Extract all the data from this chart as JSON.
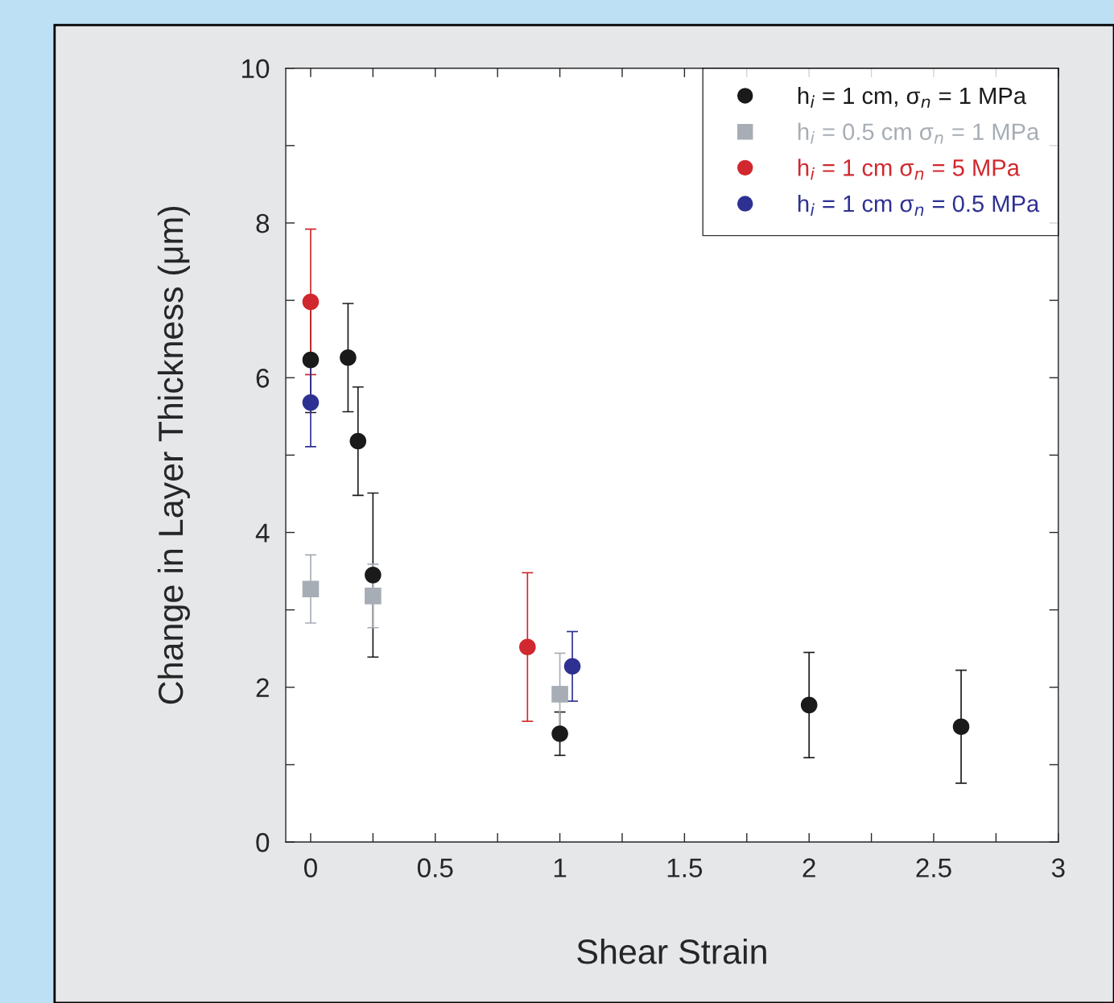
{
  "chart_data": {
    "type": "scatter",
    "xlabel": "Shear Strain",
    "ylabel": "Change in Layer Thickness (μm)",
    "xlim": [
      -0.1,
      3
    ],
    "ylim": [
      0,
      10
    ],
    "xticks": [
      0,
      {
        "value": 0.25,
        "label": null
      },
      0.5,
      {
        "value": 0.75,
        "label": null
      },
      1,
      {
        "value": 1.25,
        "label": null
      },
      1.5,
      {
        "value": 1.75,
        "label": null
      },
      2,
      {
        "value": 2.25,
        "label": null
      },
      2.5,
      {
        "value": 2.75,
        "label": null
      },
      3
    ],
    "yticks": [
      0,
      {
        "value": 1,
        "label": null
      },
      2,
      {
        "value": 3,
        "label": null
      },
      4,
      {
        "value": 5,
        "label": null
      },
      6,
      {
        "value": 7,
        "label": null
      },
      8,
      {
        "value": 9,
        "label": null
      },
      10
    ],
    "grid": false,
    "legend": "top right",
    "series": [
      {
        "name": "h$_{i}$ = 1 cm, σ$_{n}$ = 1 MPa",
        "color": "#1a1a1a",
        "marker": "circle",
        "x": [
          0,
          0.15,
          0.19,
          0.25,
          1.0,
          2.0,
          2.61
        ],
        "values": [
          6.23,
          6.26,
          5.18,
          3.45,
          1.4,
          1.77,
          1.49
        ],
        "errors": [
          0.68,
          0.7,
          0.7,
          1.06,
          0.28,
          0.68,
          0.73
        ]
      },
      {
        "name": "h$_{i}$ = 0.5 cm σ$_{n}$ = 1 MPa",
        "color": "#a7adb4",
        "marker": "square",
        "x": [
          0,
          0.25,
          1.0
        ],
        "values": [
          3.27,
          3.18,
          1.91
        ],
        "errors": [
          0.44,
          0.41,
          0.53
        ]
      },
      {
        "name": "h$_{i}$ = 1 cm σ$_{n}$ = 5 MPa",
        "color": "#d0282e",
        "marker": "circle",
        "x": [
          0,
          0.87
        ],
        "values": [
          6.98,
          2.52
        ],
        "errors": [
          0.94,
          0.96
        ]
      },
      {
        "name": "h$_{i}$ = 1 cm σ$_{n}$ = 0.5 MPa",
        "color": "#2e3192",
        "marker": "circle",
        "x": [
          0,
          1.05
        ],
        "values": [
          5.68,
          2.27
        ],
        "errors": [
          0.57,
          0.45
        ]
      }
    ]
  }
}
